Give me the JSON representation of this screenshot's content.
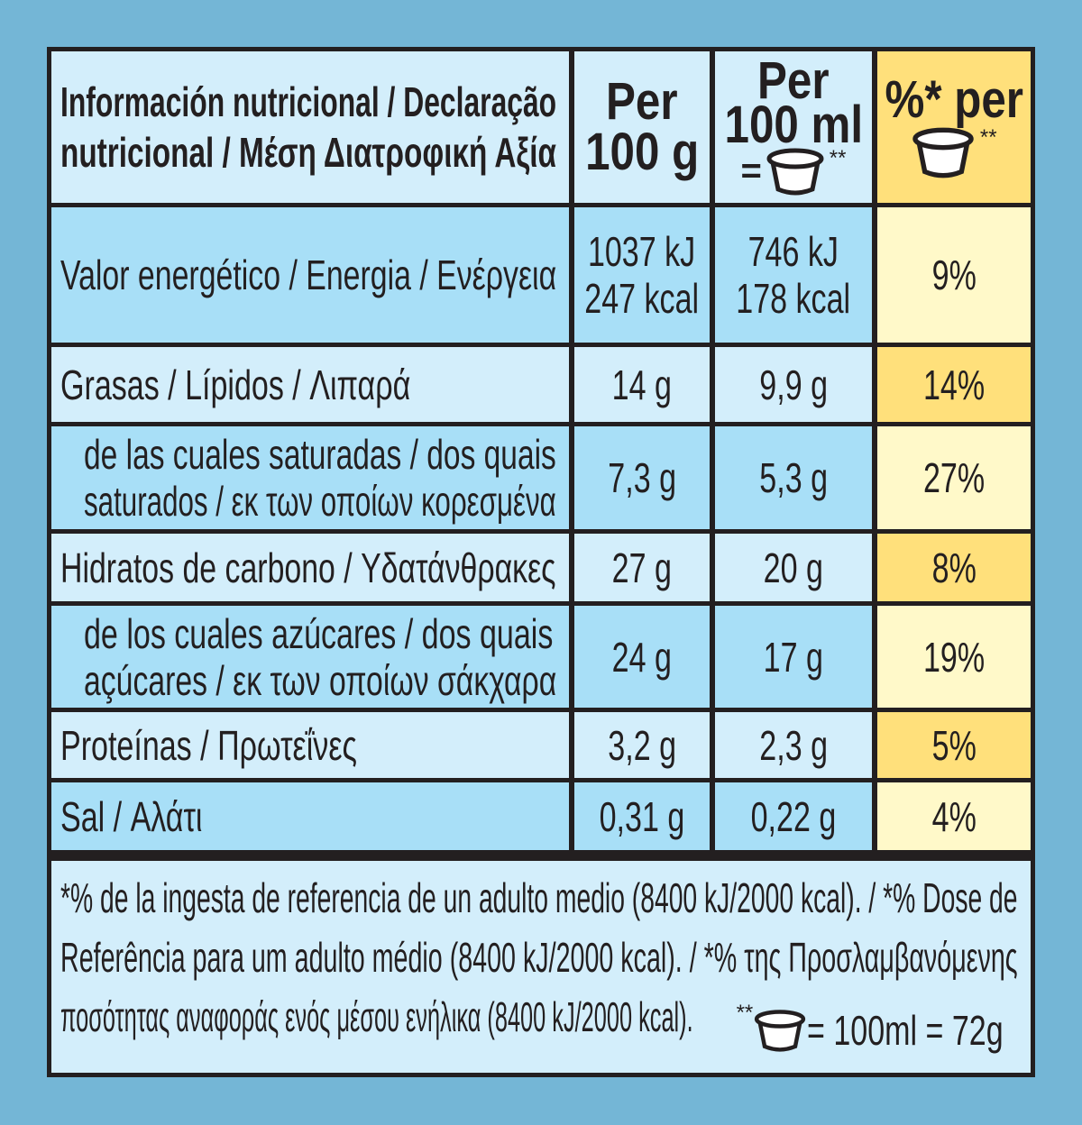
{
  "header": {
    "label_line1": "Información nutricional / Declaração",
    "label_line2": "nutricional / Μέση Διατροφική Αξία",
    "col1_line1": "Per",
    "col1_line2": "100 g",
    "col2_line1": "Per",
    "col2_line2": "100 ml",
    "col2_eq": "=",
    "col2_star": "**",
    "col3_line1": "%* per",
    "col3_star": "**"
  },
  "rows": [
    {
      "label": [
        "Valor energético / Energia / Ενέργεια"
      ],
      "per100g": [
        "1037 kJ",
        "247 kcal"
      ],
      "per100ml": [
        "746 kJ",
        "178 kcal"
      ],
      "pct": "9%"
    },
    {
      "label": [
        "Grasas / Lípidos / Λιπαρά"
      ],
      "per100g": [
        "14 g"
      ],
      "per100ml": [
        "9,9 g"
      ],
      "pct": "14%"
    },
    {
      "label": [
        "de las cuales saturadas / dos quais",
        "saturados / εκ των οποίων κορεσμένα"
      ],
      "per100g": [
        "7,3 g"
      ],
      "per100ml": [
        "5,3 g"
      ],
      "pct": "27%"
    },
    {
      "label": [
        "Hidratos de carbono / Υδατάνθρακες"
      ],
      "per100g": [
        "27 g"
      ],
      "per100ml": [
        "20 g"
      ],
      "pct": "8%"
    },
    {
      "label": [
        "de los cuales azúcares / dos quais",
        "açúcares / εκ των οποίων σάκχαρα"
      ],
      "per100g": [
        "24 g"
      ],
      "per100ml": [
        "17 g"
      ],
      "pct": "19%"
    },
    {
      "label": [
        "Proteínas / Πρωτεΐνες"
      ],
      "per100g": [
        "3,2 g"
      ],
      "per100ml": [
        "2,3 g"
      ],
      "pct": "5%"
    },
    {
      "label": [
        "Sal / Αλάτι"
      ],
      "per100g": [
        "0,31 g"
      ],
      "per100ml": [
        "0,22 g"
      ],
      "pct": "4%"
    }
  ],
  "footnote": {
    "line1": "*% de la ingesta de referencia de un adulto medio (8400 kJ/2000 kcal). / *% Dose de",
    "line2": "Referência para um adulto médio (8400 kJ/2000 kcal). / *% της Προσλαμβανόμενης",
    "line3": "ποσότητας αναφοράς ενός μέσου ενήλικα (8400 kJ/2000 kcal).",
    "serving_star": "**",
    "serving": "= 100ml = 72g"
  },
  "colors": {
    "background": "#74b6d6",
    "light_blue": "#d3eefb",
    "blue": "#a8dff7",
    "yellow": "#ffe07b",
    "pale_yellow": "#fff9c9"
  }
}
